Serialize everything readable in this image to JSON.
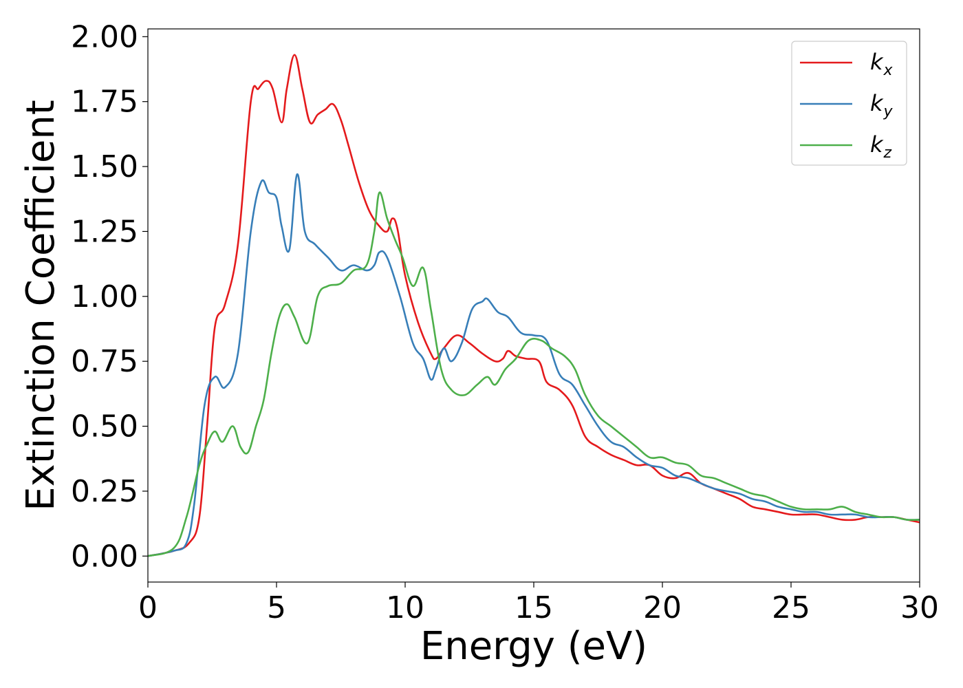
{
  "chart_data": {
    "type": "line",
    "title": "",
    "xlabel": "Energy (eV)",
    "ylabel": "Extinction Coefficient",
    "xlim": [
      0,
      30
    ],
    "ylim": [
      -0.1,
      2.03
    ],
    "xticks": [
      "0",
      "5",
      "10",
      "15",
      "20",
      "25",
      "30"
    ],
    "yticks": [
      "0.00",
      "0.25",
      "0.50",
      "0.75",
      "1.00",
      "1.25",
      "1.50",
      "1.75",
      "2.00"
    ],
    "grid": false,
    "legend_position": "top-right",
    "series": [
      {
        "name": "kx",
        "label_base": "k",
        "label_sub": "x",
        "color": "#e41a1c",
        "x": [
          0,
          1,
          1.6,
          2.0,
          2.3,
          2.6,
          3.0,
          3.5,
          4.0,
          4.3,
          4.6,
          4.85,
          5.2,
          5.4,
          5.7,
          6.0,
          6.3,
          6.6,
          6.9,
          7.2,
          7.5,
          7.8,
          8.2,
          8.6,
          9.0,
          9.3,
          9.5,
          9.7,
          10.0,
          10.5,
          11.0,
          11.2,
          11.5,
          12.0,
          12.5,
          13.0,
          13.5,
          13.8,
          14.0,
          14.3,
          14.7,
          15.2,
          15.5,
          16.0,
          16.5,
          17.0,
          17.5,
          18.0,
          18.5,
          19.0,
          19.5,
          20.0,
          20.5,
          21.0,
          21.5,
          22.0,
          22.5,
          23.0,
          23.5,
          24.0,
          24.5,
          25.0,
          25.5,
          26.0,
          26.5,
          27.0,
          27.5,
          28.0,
          28.5,
          29.0,
          29.5,
          30.0
        ],
        "y": [
          0.0,
          0.02,
          0.05,
          0.15,
          0.5,
          0.88,
          0.97,
          1.2,
          1.75,
          1.8,
          1.83,
          1.8,
          1.67,
          1.8,
          1.93,
          1.8,
          1.67,
          1.7,
          1.72,
          1.74,
          1.68,
          1.58,
          1.44,
          1.33,
          1.27,
          1.25,
          1.3,
          1.26,
          1.08,
          0.9,
          0.78,
          0.76,
          0.8,
          0.85,
          0.82,
          0.78,
          0.75,
          0.76,
          0.79,
          0.77,
          0.76,
          0.75,
          0.67,
          0.64,
          0.58,
          0.46,
          0.42,
          0.39,
          0.37,
          0.35,
          0.35,
          0.31,
          0.3,
          0.32,
          0.28,
          0.26,
          0.24,
          0.22,
          0.19,
          0.18,
          0.17,
          0.16,
          0.16,
          0.16,
          0.15,
          0.14,
          0.14,
          0.15,
          0.15,
          0.15,
          0.14,
          0.13
        ]
      },
      {
        "name": "ky",
        "label_base": "k",
        "label_sub": "y",
        "color": "#377eb8",
        "x": [
          0,
          1,
          1.5,
          1.8,
          2.2,
          2.6,
          3.0,
          3.5,
          4.0,
          4.4,
          4.7,
          5.0,
          5.2,
          5.5,
          5.8,
          6.1,
          6.5,
          7.0,
          7.5,
          8.0,
          8.5,
          8.8,
          9.0,
          9.3,
          9.8,
          10.3,
          10.7,
          11.0,
          11.2,
          11.5,
          11.8,
          12.2,
          12.6,
          13.0,
          13.2,
          13.6,
          14.0,
          14.5,
          15.0,
          15.5,
          16.0,
          16.5,
          17.0,
          17.5,
          18.0,
          18.5,
          19.0,
          19.5,
          20.0,
          20.5,
          21.0,
          21.5,
          22.0,
          22.5,
          23.0,
          23.5,
          24.0,
          24.5,
          25.0,
          25.5,
          26.0,
          26.5,
          27.0,
          27.5,
          28.0,
          28.5,
          29.0,
          29.5,
          30.0
        ],
        "y": [
          0.0,
          0.02,
          0.05,
          0.2,
          0.58,
          0.69,
          0.65,
          0.78,
          1.25,
          1.44,
          1.4,
          1.38,
          1.27,
          1.18,
          1.47,
          1.25,
          1.2,
          1.15,
          1.1,
          1.12,
          1.1,
          1.12,
          1.17,
          1.15,
          1.0,
          0.82,
          0.76,
          0.68,
          0.72,
          0.8,
          0.75,
          0.82,
          0.95,
          0.98,
          0.99,
          0.94,
          0.92,
          0.86,
          0.85,
          0.83,
          0.7,
          0.66,
          0.58,
          0.5,
          0.44,
          0.42,
          0.38,
          0.35,
          0.34,
          0.31,
          0.3,
          0.28,
          0.26,
          0.25,
          0.24,
          0.22,
          0.21,
          0.19,
          0.18,
          0.17,
          0.17,
          0.16,
          0.16,
          0.16,
          0.15,
          0.15,
          0.15,
          0.14,
          0.14
        ]
      },
      {
        "name": "kz",
        "label_base": "k",
        "label_sub": "z",
        "color": "#4daf4a",
        "x": [
          0,
          1,
          1.5,
          2.0,
          2.3,
          2.6,
          2.9,
          3.3,
          3.6,
          3.9,
          4.2,
          4.5,
          4.8,
          5.1,
          5.4,
          5.7,
          6.2,
          6.6,
          7.0,
          7.5,
          8.0,
          8.5,
          8.8,
          9.0,
          9.3,
          9.6,
          9.9,
          10.3,
          10.7,
          11.0,
          11.4,
          11.8,
          12.3,
          12.8,
          13.2,
          13.5,
          13.9,
          14.3,
          14.8,
          15.3,
          15.7,
          16.2,
          16.6,
          17.0,
          17.5,
          18.0,
          18.5,
          19.0,
          19.5,
          20.0,
          20.5,
          21.0,
          21.5,
          22.0,
          22.5,
          23.0,
          23.5,
          24.0,
          24.5,
          25.0,
          25.5,
          26.0,
          26.5,
          27.0,
          27.5,
          28.0,
          28.5,
          29.0,
          29.5,
          30.0
        ],
        "y": [
          0.0,
          0.03,
          0.15,
          0.35,
          0.43,
          0.48,
          0.44,
          0.5,
          0.42,
          0.4,
          0.5,
          0.6,
          0.78,
          0.92,
          0.97,
          0.92,
          0.82,
          1.0,
          1.04,
          1.05,
          1.1,
          1.12,
          1.25,
          1.4,
          1.3,
          1.22,
          1.15,
          1.04,
          1.11,
          0.95,
          0.72,
          0.64,
          0.62,
          0.66,
          0.69,
          0.66,
          0.72,
          0.76,
          0.83,
          0.83,
          0.8,
          0.77,
          0.72,
          0.62,
          0.54,
          0.5,
          0.46,
          0.42,
          0.38,
          0.38,
          0.36,
          0.35,
          0.31,
          0.3,
          0.28,
          0.26,
          0.24,
          0.23,
          0.21,
          0.19,
          0.18,
          0.18,
          0.18,
          0.19,
          0.17,
          0.16,
          0.15,
          0.15,
          0.14,
          0.14
        ]
      }
    ]
  }
}
